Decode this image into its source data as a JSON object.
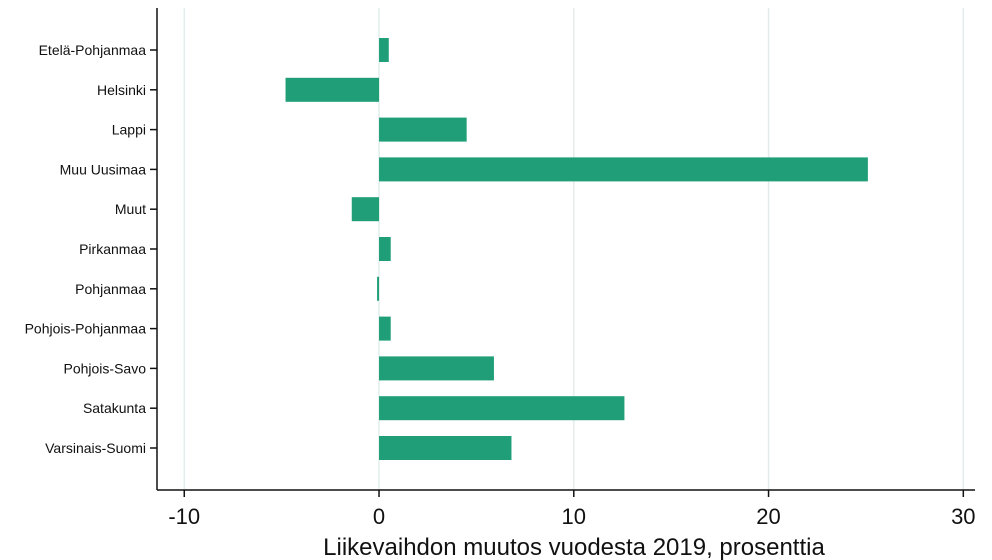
{
  "chart_data": {
    "type": "bar",
    "orientation": "horizontal",
    "title": "",
    "xlabel": "Liikevaihdon muutos vuodesta 2019, prosenttia",
    "ylabel": "",
    "xlim": [
      -11.4,
      30.6
    ],
    "xticks": [
      -10,
      0,
      10,
      20,
      30
    ],
    "grid": "vertical",
    "bar_color": "#1f9e78",
    "grid_color": "#e3ecec",
    "categories": [
      "Etelä-Pohjanmaa",
      "Helsinki",
      "Lappi",
      "Muu Uusimaa",
      "Muut",
      "Pirkanmaa",
      "Pohjanmaa",
      "Pohjois-Pohjanmaa",
      "Pohjois-Savo",
      "Satakunta",
      "Varsinais-Suomi"
    ],
    "values": [
      0.5,
      -4.8,
      4.5,
      25.1,
      -1.4,
      0.6,
      -0.1,
      0.6,
      5.9,
      12.6,
      6.8
    ]
  }
}
